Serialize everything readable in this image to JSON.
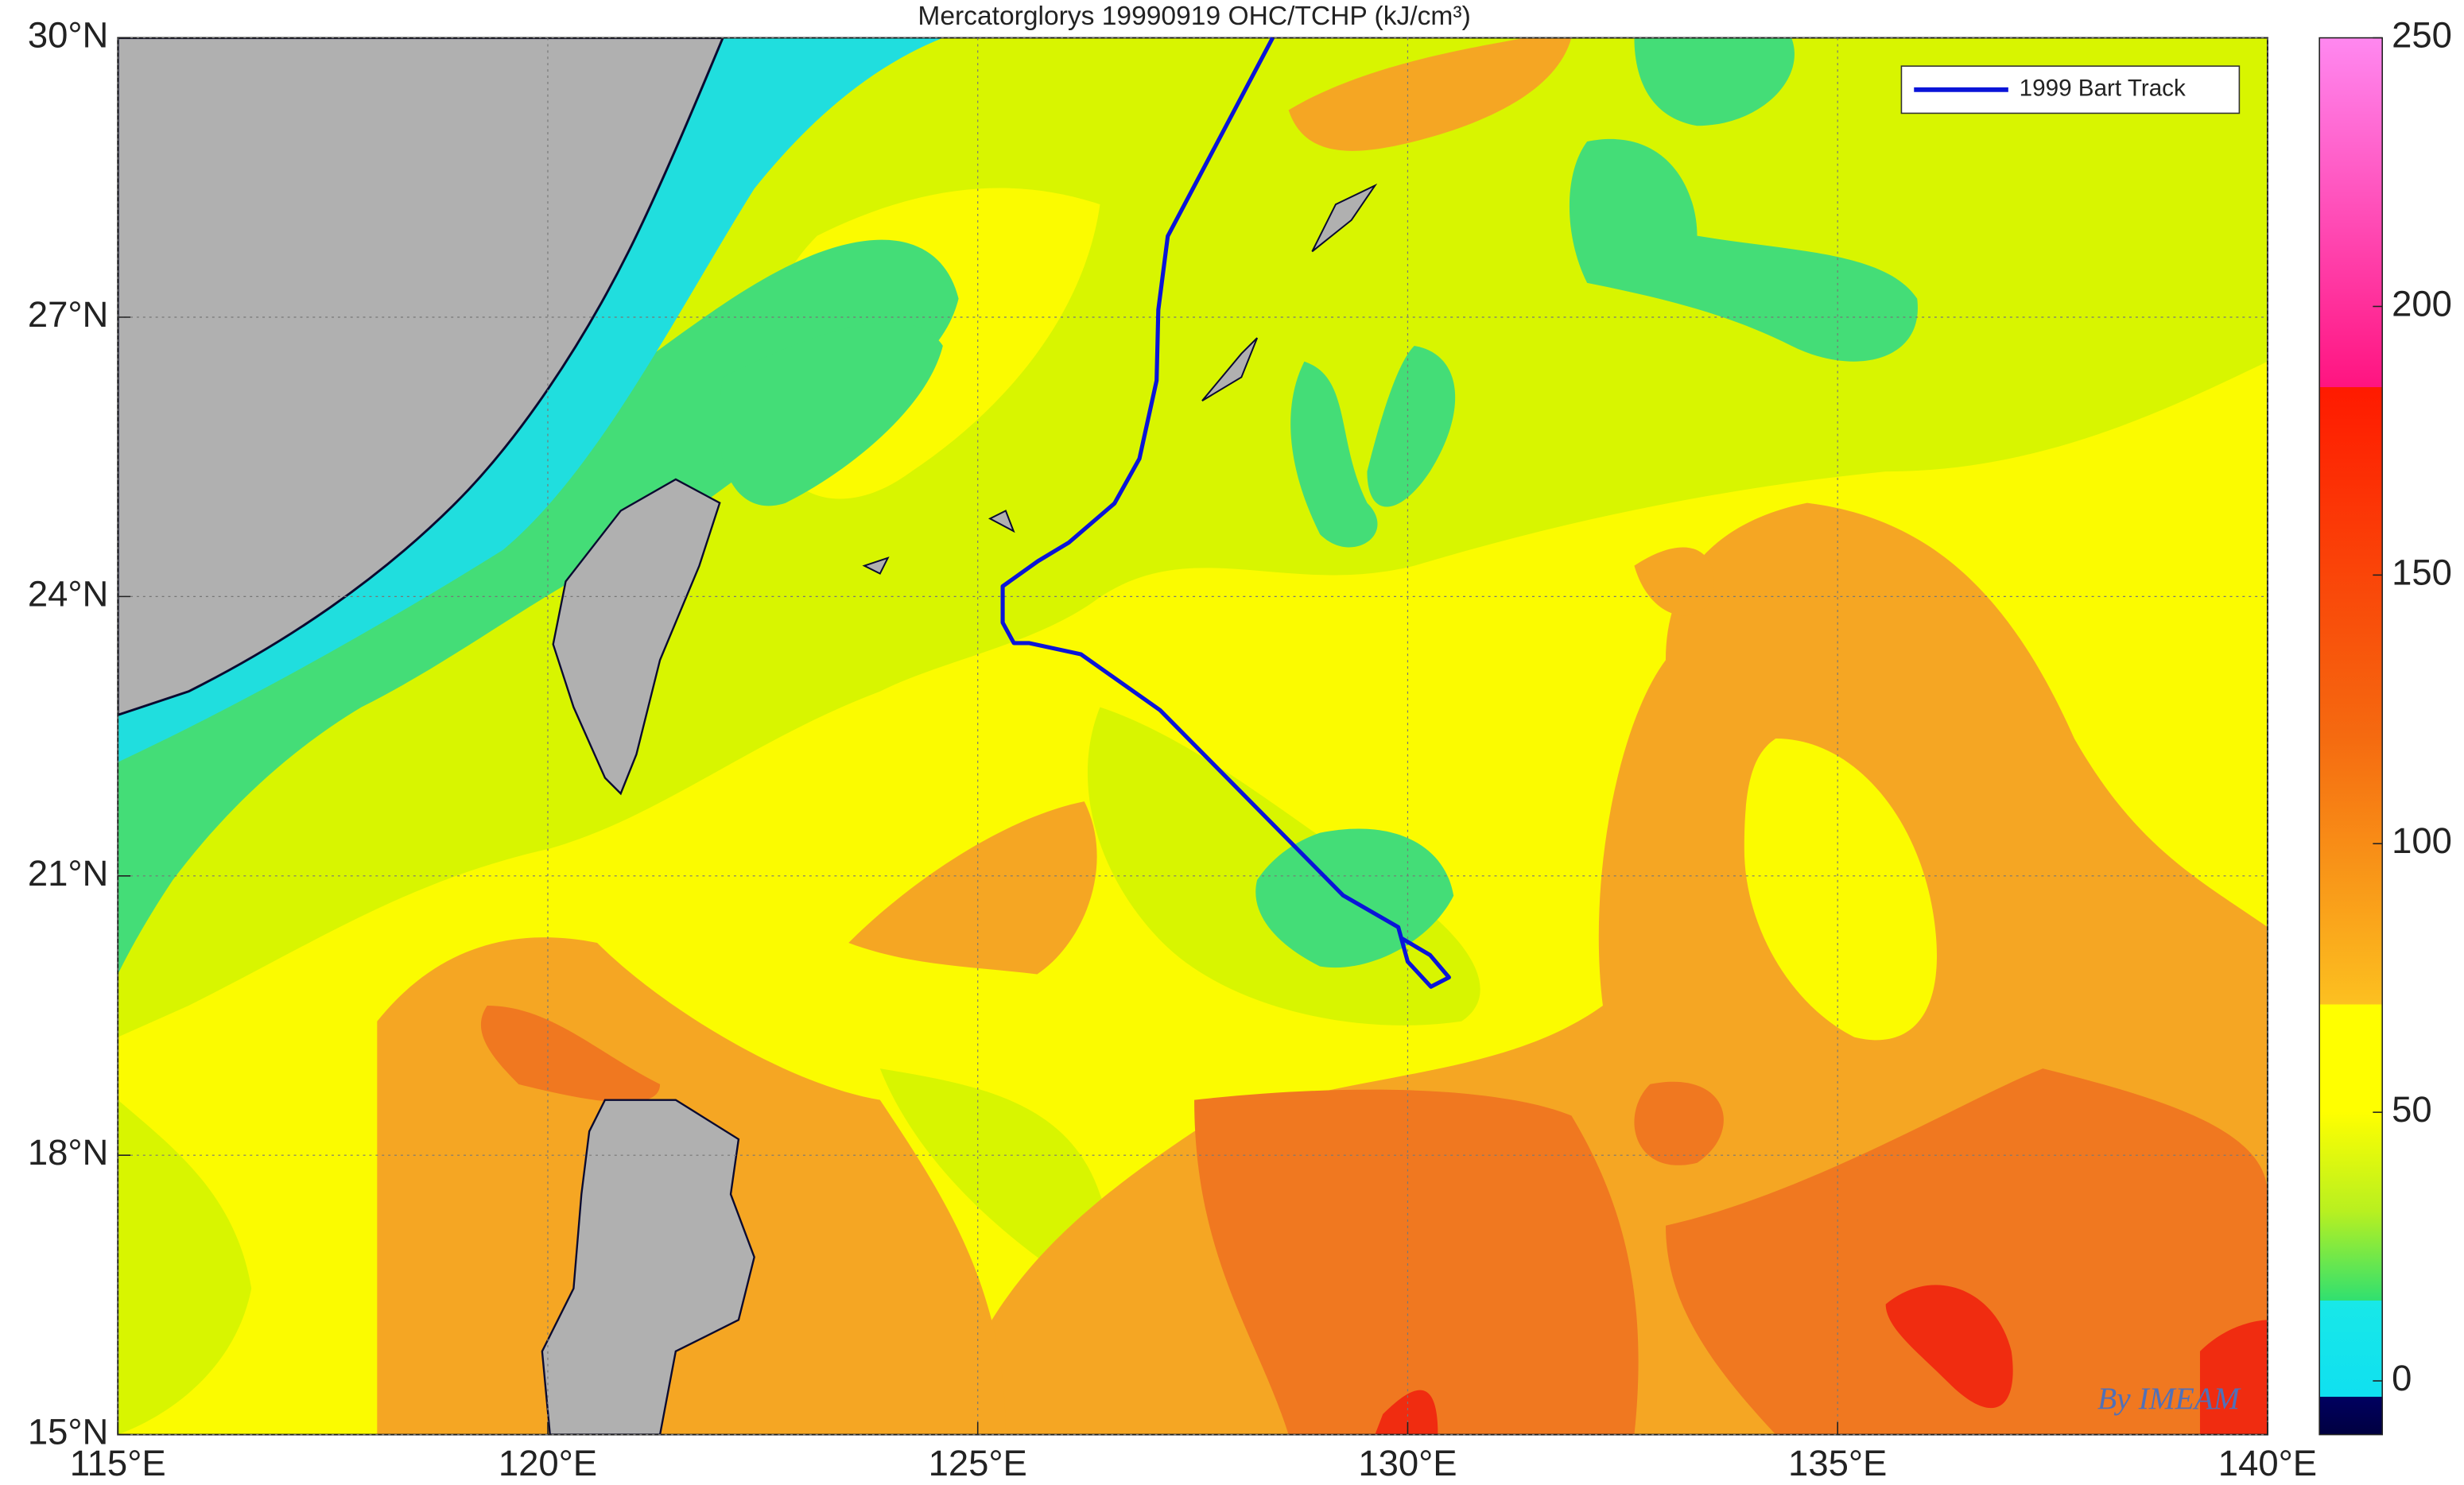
{
  "map": {
    "title": "Mercatorglorys 19990919 OHC/TCHP (kJ/cm³)",
    "xlim": [
      115,
      140
    ],
    "ylim": [
      15,
      30
    ],
    "xticks": [
      {
        "value": 115,
        "label": "115°E"
      },
      {
        "value": 120,
        "label": "120°E"
      },
      {
        "value": 125,
        "label": "125°E"
      },
      {
        "value": 130,
        "label": "130°E"
      },
      {
        "value": 135,
        "label": "135°E"
      },
      {
        "value": 140,
        "label": "140°E"
      }
    ],
    "yticks": [
      {
        "value": 15,
        "label": "15°N"
      },
      {
        "value": 18,
        "label": "18°N"
      },
      {
        "value": 21,
        "label": "21°N"
      },
      {
        "value": 24,
        "label": "24°N"
      },
      {
        "value": 27,
        "label": "27°N"
      },
      {
        "value": 30,
        "label": "30°N"
      }
    ],
    "grid": true,
    "legend_position": "upper right",
    "track": {
      "name": "1999 Bart Track",
      "color": "#0a14d8",
      "lon": [
        128.43,
        127.21,
        127.1,
        127.08,
        126.88,
        126.59,
        126.06,
        125.7,
        125.29,
        125.29,
        125.42,
        125.6,
        126.2,
        127.12,
        129.25,
        129.89,
        130.0,
        130.27,
        130.48,
        130.26,
        129.93
      ],
      "lat": [
        30.0,
        27.87,
        27.08,
        26.32,
        25.48,
        25.0,
        24.58,
        24.38,
        24.11,
        23.72,
        23.5,
        23.5,
        23.38,
        22.78,
        20.79,
        20.45,
        20.08,
        19.81,
        19.91,
        20.15,
        20.33
      ]
    },
    "colorbar": {
      "lim": [
        -10,
        250
      ],
      "ticks": [
        0,
        50,
        100,
        150,
        200,
        250
      ]
    },
    "watermark": "By IMEAM"
  }
}
